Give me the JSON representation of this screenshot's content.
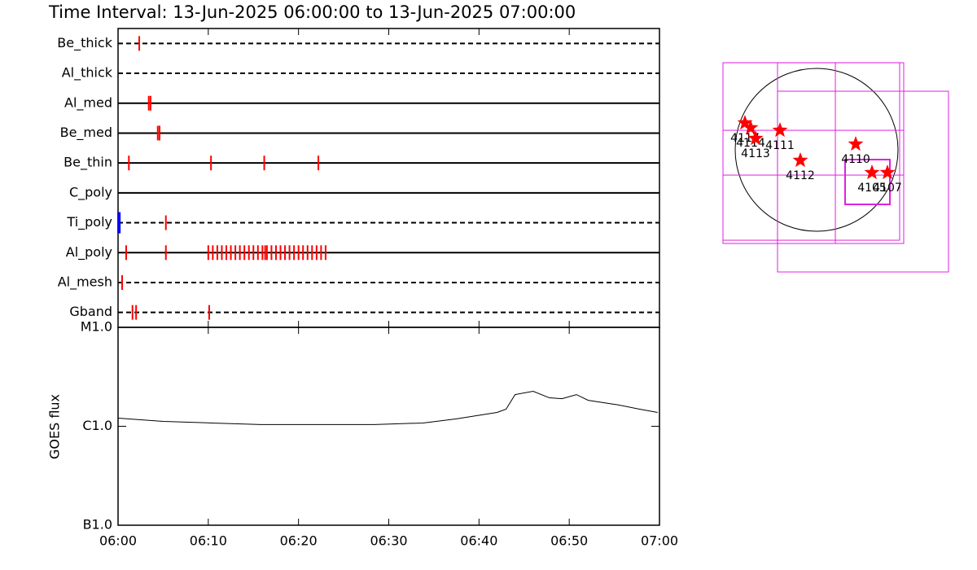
{
  "chart_data": [
    {
      "type": "timeline",
      "title": "Time Interval: 13-Jun-2025 06:00:00 to 13-Jun-2025 07:00:00",
      "rows": [
        {
          "name": "Be_thick",
          "line": "dashed",
          "series": [
            {
              "color": "#ff0000",
              "values": [
                2.35
              ]
            }
          ]
        },
        {
          "name": "Al_thick",
          "line": "dashed",
          "series": [
            {
              "color": "#ff0000",
              "values": []
            }
          ]
        },
        {
          "name": "Al_med",
          "line": "solid",
          "series": [
            {
              "color": "#ff0000",
              "values": [
                3.4,
                3.6
              ]
            }
          ]
        },
        {
          "name": "Be_med",
          "line": "solid",
          "series": [
            {
              "color": "#ff0000",
              "values": [
                4.4,
                4.6
              ]
            }
          ]
        },
        {
          "name": "Be_thin",
          "line": "solid",
          "series": [
            {
              "color": "#ff0000",
              "values": [
                1.2,
                10.3,
                16.2,
                22.2
              ]
            }
          ]
        },
        {
          "name": "C_poly",
          "line": "solid",
          "series": [
            {
              "color": "#ff0000",
              "values": []
            }
          ]
        },
        {
          "name": "Ti_poly",
          "line": "dashed",
          "series": [
            {
              "color": "#0000ff",
              "values": [
                0.1
              ]
            },
            {
              "color": "#ff0000",
              "values": [
                5.3
              ]
            }
          ]
        },
        {
          "name": "Al_poly",
          "line": "solid",
          "series": [
            {
              "color": "#ff0000",
              "values": [
                0.9,
                5.3,
                10,
                10.5,
                11,
                11.5,
                12,
                12.5,
                13,
                13.5,
                14,
                14.5,
                15,
                15.5,
                16,
                16.3,
                16.5,
                17,
                17.5,
                18,
                18.5,
                19,
                19.5,
                20,
                20.5,
                21,
                21.5,
                22,
                22.5,
                23
              ]
            }
          ]
        },
        {
          "name": "Al_mesh",
          "line": "dashed",
          "series": [
            {
              "color": "#ff0000",
              "values": [
                0.45
              ]
            }
          ]
        },
        {
          "name": "Gband",
          "line": "dashed",
          "series": [
            {
              "color": "#ff0000",
              "values": [
                1.6,
                2.0,
                10.1
              ]
            }
          ]
        }
      ]
    },
    {
      "type": "line",
      "ylabel": "GOES flux",
      "log_scale": true,
      "color": "#000000",
      "x": [
        0,
        5,
        10.4,
        15.8,
        28.4,
        33.8,
        37.5,
        42,
        43,
        44,
        46,
        47.8,
        49.2,
        50.8,
        52.1,
        55.5,
        57.8,
        59.8
      ],
      "values": [
        1.21e-06,
        1.12e-06,
        1.08e-06,
        1.04e-06,
        1.04e-06,
        1.08e-06,
        1.19e-06,
        1.38e-06,
        1.49e-06,
        2.09e-06,
        2.26e-06,
        1.94e-06,
        1.9e-06,
        2.09e-06,
        1.83e-06,
        1.64e-06,
        1.49e-06,
        1.38e-06
      ],
      "xlim": [
        0,
        60
      ],
      "xticks": [
        {
          "value": 0,
          "label": "06:00"
        },
        {
          "value": 10,
          "label": "06:10"
        },
        {
          "value": 20,
          "label": "06:20"
        },
        {
          "value": 30,
          "label": "06:30"
        },
        {
          "value": 40,
          "label": "06:40"
        },
        {
          "value": 50,
          "label": "06:50"
        },
        {
          "value": 60,
          "label": "07:00"
        }
      ],
      "ylim": [
        1e-07,
        1e-05
      ],
      "yticks": [
        {
          "value": 1e-07,
          "label": "B1.0"
        },
        {
          "value": 1e-06,
          "label": "C1.0"
        },
        {
          "value": 1e-05,
          "label": "M1.0"
        }
      ]
    },
    {
      "type": "map",
      "marker_color": "#ff0000",
      "box_color": "#e020e0",
      "points": [
        {
          "name": "4117",
          "x": -845,
          "y": 317
        },
        {
          "name": "4114",
          "x": -778,
          "y": 259
        },
        {
          "name": "4113",
          "x": -720,
          "y": 134
        },
        {
          "name": "4111",
          "x": -432,
          "y": 230
        },
        {
          "name": "4112",
          "x": -192,
          "y": -125
        },
        {
          "name": "4110",
          "x": 461,
          "y": 67
        },
        {
          "name": "4105",
          "x": 653,
          "y": -269
        },
        {
          "name": "4107",
          "x": 835,
          "y": -269
        }
      ],
      "boxes": [
        [
          -1104,
          -1104,
          1027,
          1027
        ],
        [
          -1104,
          -1066,
          979,
          1027
        ],
        [
          -461,
          -1104,
          221,
          1027
        ],
        [
          -1104,
          -298,
          1027,
          230
        ],
        [
          -461,
          -1440,
          1555,
          691
        ],
        [
          336,
          -643,
          864,
          -115
        ]
      ]
    }
  ]
}
